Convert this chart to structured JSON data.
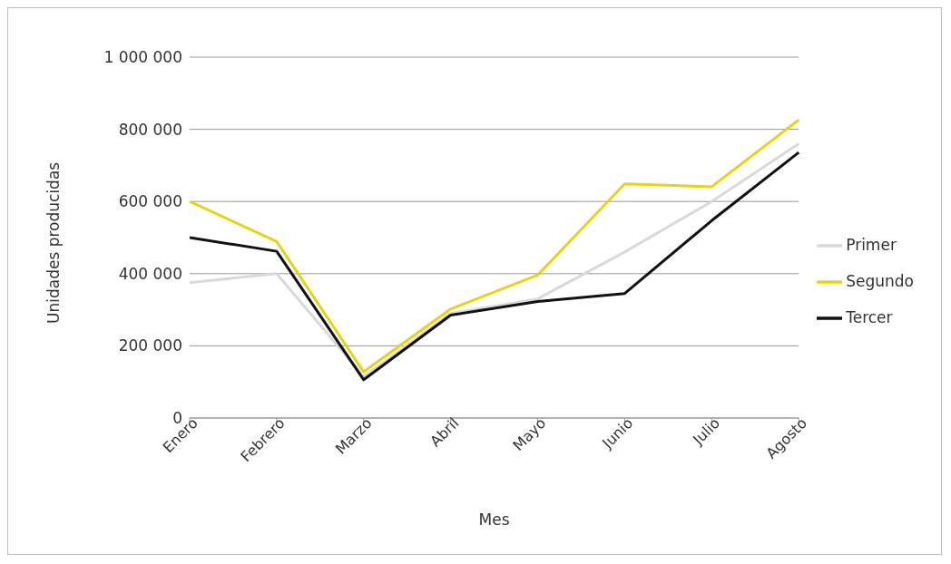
{
  "chart_data": {
    "type": "line",
    "xlabel": "Mes",
    "ylabel": "Unidades producidas",
    "categories": [
      "Enero",
      "Febrero",
      "Marzo",
      "Abril",
      "Mayo",
      "Junio",
      "Julio",
      "Agosto"
    ],
    "series": [
      {
        "name": "Primer",
        "color": "#d9d9d9",
        "values": [
          375000,
          400000,
          115000,
          290000,
          330000,
          460000,
          600000,
          760000
        ]
      },
      {
        "name": "Segundo",
        "color": "#e8d21a",
        "values": [
          600000,
          489000,
          128000,
          302000,
          396000,
          649000,
          641000,
          826000
        ]
      },
      {
        "name": "Tercer",
        "color": "#111111",
        "values": [
          500000,
          462000,
          106000,
          285000,
          323000,
          345000,
          547000,
          736000
        ]
      }
    ],
    "ylim": [
      0,
      1000000
    ],
    "yticks": [
      0,
      200000,
      400000,
      600000,
      800000,
      1000000
    ],
    "grid": "y",
    "legend": "right",
    "marker": "none",
    "line_style": "solid"
  }
}
